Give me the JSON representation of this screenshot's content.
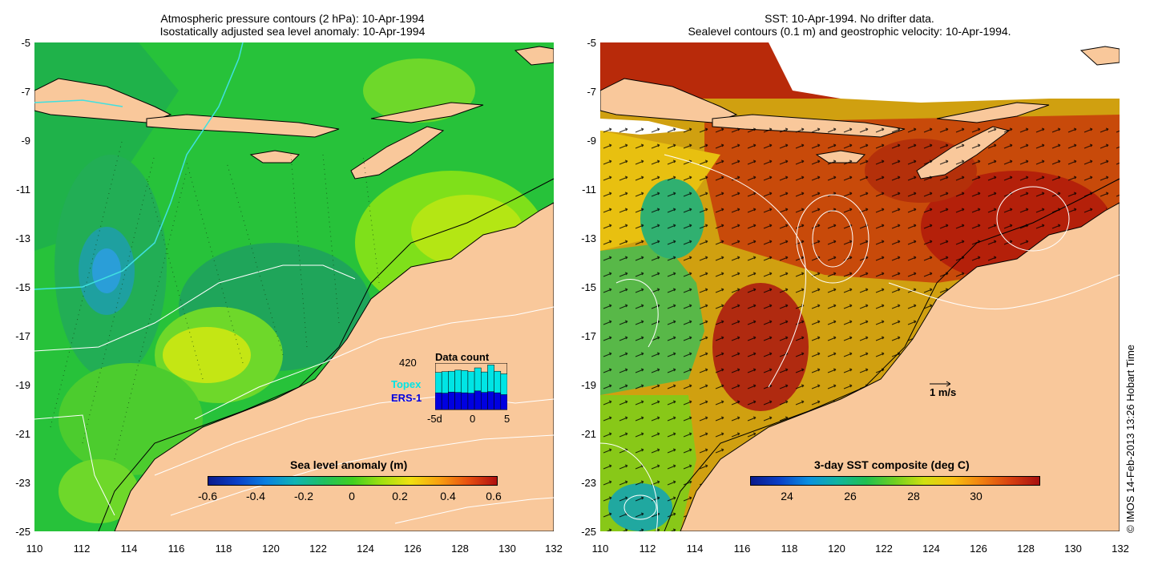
{
  "left_panel": {
    "title_line1": "Atmospheric pressure contours (2 hPa): 10-Apr-1994",
    "title_line2": "Isostatically adjusted sea level anomaly: 10-Apr-1994",
    "colorbar": {
      "title": "Sea level anomaly (m)",
      "ticks": [
        "-0.6",
        "-0.4",
        "-0.2",
        "0",
        "0.2",
        "0.4",
        "0.6"
      ]
    },
    "data_count": {
      "title": "Data count",
      "max_label": "420",
      "topex_label": "Topex",
      "ers1_label": "ERS-1",
      "x_ticks": [
        "-5d",
        "0",
        "5"
      ],
      "topex_values": [
        0.55,
        0.58,
        0.56,
        0.6,
        0.6,
        0.58,
        0.62,
        0.55,
        0.72,
        0.58,
        0.56
      ],
      "ers1_values": [
        0.45,
        0.44,
        0.47,
        0.46,
        0.45,
        0.44,
        0.5,
        0.46,
        0.48,
        0.45,
        0.4
      ]
    }
  },
  "right_panel": {
    "title_line1": "SST: 10-Apr-1994. No drifter data.",
    "title_line2": "Sealevel contours (0.1 m) and geostrophic velocity: 10-Apr-1994.",
    "colorbar": {
      "title": "3-day SST composite (deg C)",
      "ticks": [
        "24",
        "26",
        "28",
        "30"
      ]
    },
    "scale_label": "1 m/s"
  },
  "axes": {
    "y_ticks": [
      "-5",
      "-7",
      "-9",
      "-11",
      "-13",
      "-15",
      "-17",
      "-19",
      "-21",
      "-23",
      "-25"
    ],
    "x_ticks": [
      "110",
      "112",
      "114",
      "116",
      "118",
      "120",
      "122",
      "124",
      "126",
      "128",
      "130",
      "132"
    ]
  },
  "credit": "© IMOS 14-Feb-2013 13:26 Hobart Time",
  "colors": {
    "land": "#f9c89b",
    "ocean_green": "#2ecc40",
    "sst_red": "#c0280a",
    "topex": "#00e5e5",
    "ers1": "#0000e0"
  }
}
